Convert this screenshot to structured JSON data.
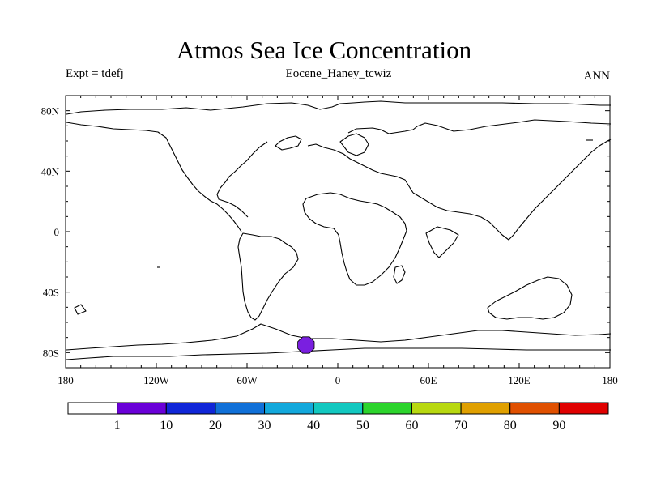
{
  "header": {
    "title": "Atmos Sea Ice Concentration",
    "left_label": "Expt = tdefj",
    "center_label": "Eocene_Haney_tcwiz",
    "right_label": "ANN"
  },
  "map": {
    "projection": "cylindrical-equidistant",
    "lon_range": [
      -180,
      180
    ],
    "lat_range": [
      -90,
      90
    ],
    "y_ticks": [
      {
        "lat": 80,
        "label": "80N"
      },
      {
        "lat": 40,
        "label": "40N"
      },
      {
        "lat": 0,
        "label": "0"
      },
      {
        "lat": -40,
        "label": "40S"
      },
      {
        "lat": -80,
        "label": "80S"
      }
    ],
    "x_ticks": [
      {
        "lon": -180,
        "label": "180"
      },
      {
        "lon": -120,
        "label": "120W"
      },
      {
        "lon": -60,
        "label": "60W"
      },
      {
        "lon": 0,
        "label": "0"
      },
      {
        "lon": 60,
        "label": "60E"
      },
      {
        "lon": 120,
        "label": "120E"
      },
      {
        "lon": 180,
        "label": "180"
      }
    ],
    "ice_patch": {
      "lon": -21,
      "lat": -75,
      "fill": "#7a1fe0"
    }
  },
  "colorbar": {
    "colors": [
      "#ffffff",
      "#6a00d8",
      "#1026d8",
      "#1070d8",
      "#12a8dc",
      "#12c8c0",
      "#2cd42c",
      "#b8d810",
      "#e0a000",
      "#e05000",
      "#e00000"
    ],
    "labels": [
      "1",
      "10",
      "20",
      "30",
      "40",
      "50",
      "60",
      "70",
      "80",
      "90"
    ]
  }
}
